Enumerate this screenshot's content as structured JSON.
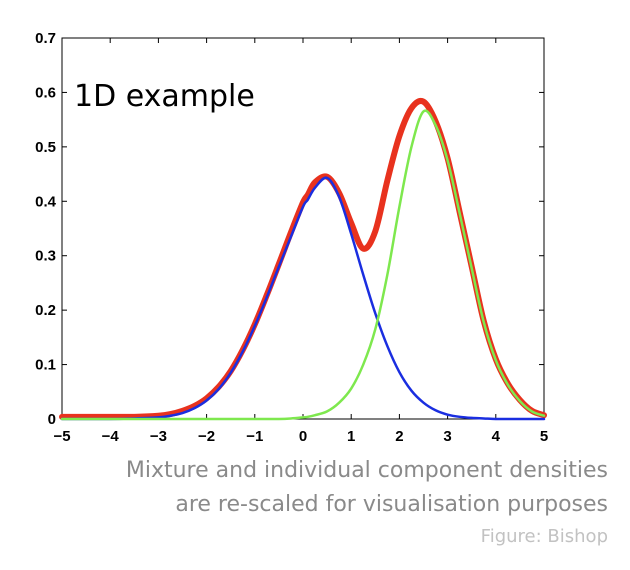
{
  "chart_data": {
    "type": "line",
    "title": "",
    "xlabel": "",
    "ylabel": "",
    "xlim": [
      -5,
      5
    ],
    "ylim": [
      0,
      0.7
    ],
    "xticks": [
      -5,
      -4,
      -3,
      -2,
      -1,
      0,
      1,
      2,
      3,
      4,
      5
    ],
    "yticks": [
      0,
      0.1,
      0.2,
      0.3,
      0.4,
      0.5,
      0.6,
      0.7
    ],
    "xtick_labels": [
      "−5",
      "−4",
      "−3",
      "−2",
      "−1",
      "0",
      "1",
      "2",
      "3",
      "4",
      "5"
    ],
    "ytick_labels": [
      "0",
      "0.1",
      "0.2",
      "0.3",
      "0.4",
      "0.5",
      "0.6",
      "0.7"
    ],
    "grid": false,
    "annotation": "1D example",
    "x": [
      -5,
      -4.5,
      -4,
      -3.5,
      -3,
      -2.75,
      -2.5,
      -2.25,
      -2,
      -1.75,
      -1.5,
      -1.25,
      -1,
      -0.75,
      -0.5,
      -0.25,
      0,
      0.1,
      0.25,
      0.5,
      0.75,
      1,
      1.25,
      1.5,
      1.75,
      2,
      2.25,
      2.5,
      2.75,
      3,
      3.25,
      3.5,
      3.75,
      4,
      4.25,
      4.5,
      4.75,
      5
    ],
    "series": [
      {
        "color": "#e8321e",
        "values": [
          0.004,
          0.004,
          0.004,
          0.004,
          0.006,
          0.009,
          0.015,
          0.024,
          0.038,
          0.059,
          0.088,
          0.127,
          0.174,
          0.228,
          0.285,
          0.343,
          0.398,
          0.412,
          0.435,
          0.445,
          0.415,
          0.36,
          0.313,
          0.345,
          0.438,
          0.52,
          0.571,
          0.583,
          0.547,
          0.479,
          0.38,
          0.28,
          0.18,
          0.11,
          0.065,
          0.035,
          0.015,
          0.007
        ]
      },
      {
        "color": "#1a2ee0",
        "values": [
          0.0,
          0.0,
          0.0,
          0.001,
          0.003,
          0.006,
          0.011,
          0.02,
          0.034,
          0.055,
          0.085,
          0.124,
          0.171,
          0.224,
          0.28,
          0.335,
          0.39,
          0.403,
          0.425,
          0.443,
          0.408,
          0.34,
          0.265,
          0.194,
          0.134,
          0.086,
          0.052,
          0.03,
          0.016,
          0.008,
          0.004,
          0.002,
          0.001,
          0.0,
          0.0,
          0.0,
          0.0,
          0.0
        ]
      },
      {
        "color": "#7ee84e",
        "values": [
          0.0,
          0.0,
          0.0,
          0.0,
          0.0,
          0.0,
          0.0,
          0.0,
          0.0,
          0.0,
          0.0,
          0.0,
          0.0,
          0.0,
          0.0,
          0.001,
          0.003,
          0.004,
          0.007,
          0.014,
          0.03,
          0.056,
          0.1,
          0.165,
          0.265,
          0.39,
          0.5,
          0.565,
          0.54,
          0.475,
          0.378,
          0.277,
          0.178,
          0.108,
          0.063,
          0.033,
          0.014,
          0.006
        ]
      }
    ]
  },
  "captions": {
    "line1": "Mixture and individual component densities",
    "line2": "are re-scaled for visualisation purposes",
    "credit": "Figure: Bishop"
  }
}
